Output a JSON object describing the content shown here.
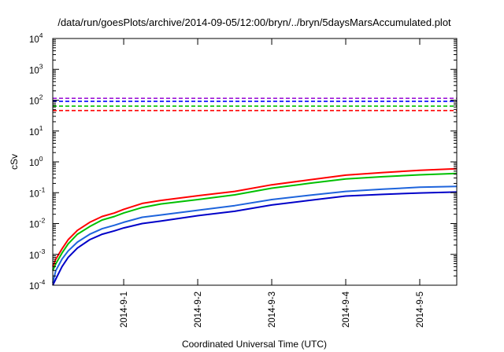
{
  "chart_data": {
    "type": "line",
    "title": "/data/run/goesPlots/archive/2014-09-05/12:00/bryn/../bryn/5daysMarsAccumulated.plot",
    "xlabel": "Coordinated Universal Time (UTC)",
    "ylabel": "cSv",
    "y_scale": "log",
    "ylim": [
      0.0001,
      10000
    ],
    "y_ticks": [
      {
        "base": "10",
        "exp": "-4",
        "value": 0.0001
      },
      {
        "base": "10",
        "exp": "-3",
        "value": 0.001
      },
      {
        "base": "10",
        "exp": "-2",
        "value": 0.01
      },
      {
        "base": "10",
        "exp": "-1",
        "value": 0.1
      },
      {
        "base": "10",
        "exp": "0",
        "value": 1
      },
      {
        "base": "10",
        "exp": "1",
        "value": 10
      },
      {
        "base": "10",
        "exp": "2",
        "value": 100
      },
      {
        "base": "10",
        "exp": "3",
        "value": 1000
      },
      {
        "base": "10",
        "exp": "4",
        "value": 10000
      }
    ],
    "xlim": [
      "2014-08-31T01:00",
      "2014-09-05T12:00"
    ],
    "x_ticks": [
      {
        "label": "2014-9-1",
        "value": "2014-09-01T00:00"
      },
      {
        "label": "2014-9-2",
        "value": "2014-09-02T00:00"
      },
      {
        "label": "2014-9-3",
        "value": "2014-09-03T00:00"
      },
      {
        "label": "2014-9-4",
        "value": "2014-09-04T00:00"
      },
      {
        "label": "2014-9-5",
        "value": "2014-09-05T00:00"
      }
    ],
    "grid": false,
    "legend": "none",
    "reference_lines": [
      {
        "color": "#9400d3",
        "value": 115
      },
      {
        "color": "#0000ff",
        "value": 92
      },
      {
        "color": "#00c000",
        "value": 64
      },
      {
        "color": "#ff0000",
        "value": 46
      }
    ],
    "series": [
      {
        "color": "#ff0000",
        "points": [
          [
            "2014-08-31T01:00",
            0.0004
          ],
          [
            "2014-08-31T02:00",
            0.0007
          ],
          [
            "2014-08-31T04:00",
            0.0015
          ],
          [
            "2014-08-31T06:00",
            0.003
          ],
          [
            "2014-08-31T09:00",
            0.006
          ],
          [
            "2014-08-31T13:00",
            0.011
          ],
          [
            "2014-08-31T17:00",
            0.017
          ],
          [
            "2014-08-31T21:00",
            0.022
          ],
          [
            "2014-09-01T00:00",
            0.029
          ],
          [
            "2014-09-01T06:00",
            0.045
          ],
          [
            "2014-09-01T12:00",
            0.056
          ],
          [
            "2014-09-02T00:00",
            0.08
          ],
          [
            "2014-09-02T12:00",
            0.11
          ],
          [
            "2014-09-03T00:00",
            0.18
          ],
          [
            "2014-09-03T12:00",
            0.26
          ],
          [
            "2014-09-04T00:00",
            0.37
          ],
          [
            "2014-09-04T12:00",
            0.45
          ],
          [
            "2014-09-05T00:00",
            0.53
          ],
          [
            "2014-09-05T12:00",
            0.6
          ]
        ]
      },
      {
        "color": "#00c000",
        "points": [
          [
            "2014-08-31T01:00",
            0.0003
          ],
          [
            "2014-08-31T02:00",
            0.0005
          ],
          [
            "2014-08-31T04:00",
            0.0011
          ],
          [
            "2014-08-31T06:00",
            0.0022
          ],
          [
            "2014-08-31T09:00",
            0.0045
          ],
          [
            "2014-08-31T13:00",
            0.008
          ],
          [
            "2014-08-31T17:00",
            0.013
          ],
          [
            "2014-08-31T21:00",
            0.017
          ],
          [
            "2014-09-01T00:00",
            0.022
          ],
          [
            "2014-09-01T06:00",
            0.033
          ],
          [
            "2014-09-01T12:00",
            0.043
          ],
          [
            "2014-09-02T00:00",
            0.06
          ],
          [
            "2014-09-02T12:00",
            0.085
          ],
          [
            "2014-09-03T00:00",
            0.14
          ],
          [
            "2014-09-03T12:00",
            0.2
          ],
          [
            "2014-09-04T00:00",
            0.28
          ],
          [
            "2014-09-04T12:00",
            0.33
          ],
          [
            "2014-09-05T00:00",
            0.38
          ],
          [
            "2014-09-05T12:00",
            0.42
          ]
        ]
      },
      {
        "color": "#1e64dc",
        "points": [
          [
            "2014-08-31T01:00",
            0.00012
          ],
          [
            "2014-08-31T02:00",
            0.0003
          ],
          [
            "2014-08-31T04:00",
            0.0007
          ],
          [
            "2014-08-31T06:00",
            0.0013
          ],
          [
            "2014-08-31T09:00",
            0.0025
          ],
          [
            "2014-08-31T13:00",
            0.0045
          ],
          [
            "2014-08-31T17:00",
            0.0068
          ],
          [
            "2014-08-31T21:00",
            0.0088
          ],
          [
            "2014-09-01T00:00",
            0.011
          ],
          [
            "2014-09-01T06:00",
            0.016
          ],
          [
            "2014-09-01T12:00",
            0.019
          ],
          [
            "2014-09-02T00:00",
            0.027
          ],
          [
            "2014-09-02T12:00",
            0.038
          ],
          [
            "2014-09-03T00:00",
            0.06
          ],
          [
            "2014-09-03T12:00",
            0.082
          ],
          [
            "2014-09-04T00:00",
            0.11
          ],
          [
            "2014-09-04T12:00",
            0.13
          ],
          [
            "2014-09-05T00:00",
            0.15
          ],
          [
            "2014-09-05T12:00",
            0.16
          ]
        ]
      },
      {
        "color": "#0000c8",
        "points": [
          [
            "2014-08-31T01:00",
            0.0001
          ],
          [
            "2014-08-31T02:00",
            0.00016
          ],
          [
            "2014-08-31T04:00",
            0.0004
          ],
          [
            "2014-08-31T06:00",
            0.0008
          ],
          [
            "2014-08-31T09:00",
            0.0016
          ],
          [
            "2014-08-31T13:00",
            0.003
          ],
          [
            "2014-08-31T17:00",
            0.0045
          ],
          [
            "2014-08-31T21:00",
            0.0058
          ],
          [
            "2014-09-01T00:00",
            0.0072
          ],
          [
            "2014-09-01T06:00",
            0.01
          ],
          [
            "2014-09-01T12:00",
            0.012
          ],
          [
            "2014-09-02T00:00",
            0.018
          ],
          [
            "2014-09-02T12:00",
            0.025
          ],
          [
            "2014-09-03T00:00",
            0.04
          ],
          [
            "2014-09-03T12:00",
            0.056
          ],
          [
            "2014-09-04T00:00",
            0.078
          ],
          [
            "2014-09-04T12:00",
            0.088
          ],
          [
            "2014-09-05T00:00",
            0.098
          ],
          [
            "2014-09-05T12:00",
            0.105
          ]
        ]
      }
    ]
  }
}
